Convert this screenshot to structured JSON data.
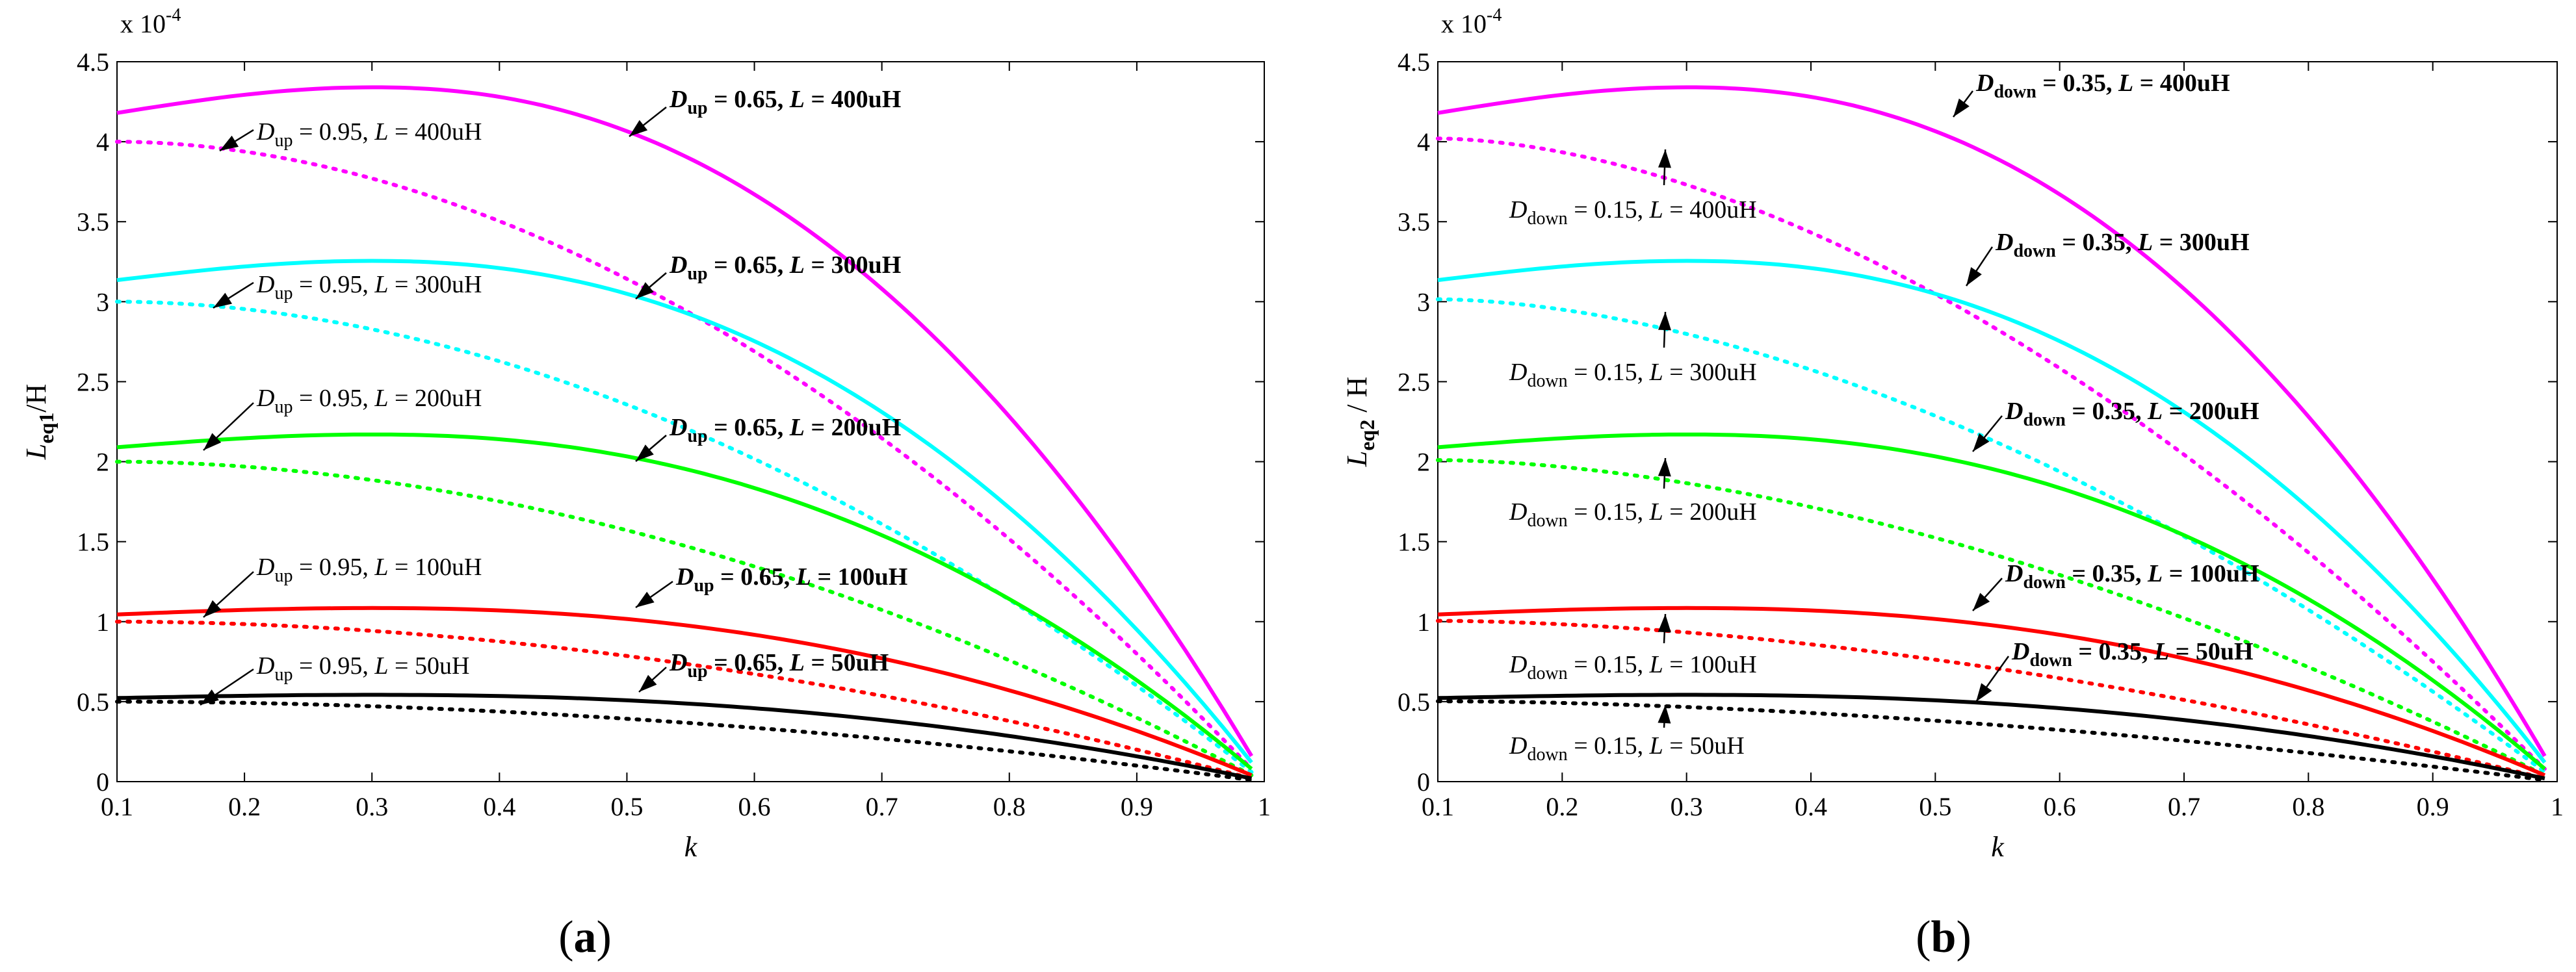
{
  "chart_data": [
    {
      "type": "line",
      "panel_label": "a",
      "xlabel": "k",
      "ylabel_main": "L",
      "ylabel_sub": "eq1",
      "ylabel_unit": "/H",
      "y_exponent_prefix": "x 10",
      "y_exponent_power": "-4",
      "xlim": [
        0.1,
        1
      ],
      "ylim": [
        0,
        4.5
      ],
      "xticks": [
        "0.1",
        "0.2",
        "0.3",
        "0.4",
        "0.5",
        "0.6",
        "0.7",
        "0.8",
        "0.9",
        "1"
      ],
      "yticks": [
        "0",
        "0.5",
        "1",
        "1.5",
        "2",
        "2.5",
        "3",
        "3.5",
        "4",
        "4.5"
      ],
      "series": [
        {
          "name": "D_up = 0.65, L = 400uH",
          "duty": 0.65,
          "L_uH": 400,
          "color": "#ff00ff",
          "style": "solid"
        },
        {
          "name": "D_up = 0.95, L = 400uH",
          "duty": 0.95,
          "L_uH": 400,
          "color": "#ff00ff",
          "style": "dotted"
        },
        {
          "name": "D_up = 0.65, L = 300uH",
          "duty": 0.65,
          "L_uH": 300,
          "color": "#00ffff",
          "style": "solid"
        },
        {
          "name": "D_up = 0.95, L = 300uH",
          "duty": 0.95,
          "L_uH": 300,
          "color": "#00ffff",
          "style": "dotted"
        },
        {
          "name": "D_up = 0.65, L = 200uH",
          "duty": 0.65,
          "L_uH": 200,
          "color": "#00ff00",
          "style": "solid"
        },
        {
          "name": "D_up = 0.95, L = 200uH",
          "duty": 0.95,
          "L_uH": 200,
          "color": "#00ff00",
          "style": "dotted"
        },
        {
          "name": "D_up = 0.65, L = 100uH",
          "duty": 0.65,
          "L_uH": 100,
          "color": "#ff0000",
          "style": "solid"
        },
        {
          "name": "D_up = 0.95, L = 100uH",
          "duty": 0.95,
          "L_uH": 100,
          "color": "#ff0000",
          "style": "dotted"
        },
        {
          "name": "D_up = 0.65, L = 50uH",
          "duty": 0.65,
          "L_uH": 50,
          "color": "#000000",
          "style": "solid"
        },
        {
          "name": "D_up = 0.95, L = 50uH",
          "duty": 0.95,
          "L_uH": 50,
          "color": "#000000",
          "style": "dotted"
        }
      ],
      "annotations": [
        {
          "sym": "D",
          "sub": "up",
          "rest": " = 0.65, ",
          "L": "L",
          "val": " = 400uH",
          "bold": true
        },
        {
          "sym": "D",
          "sub": "up",
          "rest": " = 0.95, ",
          "L": "L",
          "val": " = 400uH",
          "bold": false
        },
        {
          "sym": "D",
          "sub": "up",
          "rest": " = 0.65, ",
          "L": "L",
          "val": " = 300uH",
          "bold": true
        },
        {
          "sym": "D",
          "sub": "up",
          "rest": " = 0.95, ",
          "L": "L",
          "val": " = 300uH",
          "bold": false
        },
        {
          "sym": "D",
          "sub": "up",
          "rest": " = 0.95, ",
          "L": "L",
          "val": " = 200uH",
          "bold": false
        },
        {
          "sym": "D",
          "sub": "up",
          "rest": " = 0.65, ",
          "L": "L",
          "val": " = 200uH",
          "bold": true
        },
        {
          "sym": "D",
          "sub": "up",
          "rest": " = 0.95, ",
          "L": "L",
          "val": " = 100uH",
          "bold": false
        },
        {
          "sym": "D",
          "sub": "up",
          "rest": " = 0.65, ",
          "L": "L",
          "val": " = 100uH",
          "bold": true
        },
        {
          "sym": "D",
          "sub": "up",
          "rest": " = 0.95, ",
          "L": "L",
          "val": " = 50uH",
          "bold": false
        },
        {
          "sym": "D",
          "sub": "up",
          "rest": " = 0.65, ",
          "L": "L",
          "val": " = 50uH",
          "bold": true
        }
      ]
    },
    {
      "type": "line",
      "panel_label": "b",
      "xlabel": "k",
      "ylabel_main": "L",
      "ylabel_sub": "eq2",
      "ylabel_unit": " / H",
      "y_exponent_prefix": "x 10",
      "y_exponent_power": "-4",
      "xlim": [
        0.1,
        1
      ],
      "ylim": [
        0,
        4.5
      ],
      "xticks": [
        "0.1",
        "0.2",
        "0.3",
        "0.4",
        "0.5",
        "0.6",
        "0.7",
        "0.8",
        "0.9",
        "1"
      ],
      "yticks": [
        "0",
        "0.5",
        "1",
        "1.5",
        "2",
        "2.5",
        "3",
        "3.5",
        "4",
        "4.5"
      ],
      "series": [
        {
          "name": "D_down = 0.35, L = 400uH",
          "duty": 0.35,
          "L_uH": 400,
          "color": "#ff00ff",
          "style": "solid"
        },
        {
          "name": "D_down = 0.15, L = 400uH",
          "duty": 0.15,
          "L_uH": 400,
          "color": "#ff00ff",
          "style": "dotted"
        },
        {
          "name": "D_down = 0.35, L = 300uH",
          "duty": 0.35,
          "L_uH": 300,
          "color": "#00ffff",
          "style": "solid"
        },
        {
          "name": "D_down = 0.15, L = 300uH",
          "duty": 0.15,
          "L_uH": 300,
          "color": "#00ffff",
          "style": "dotted"
        },
        {
          "name": "D_down = 0.35, L = 200uH",
          "duty": 0.35,
          "L_uH": 200,
          "color": "#00ff00",
          "style": "solid"
        },
        {
          "name": "D_down = 0.15, L = 200uH",
          "duty": 0.15,
          "L_uH": 200,
          "color": "#00ff00",
          "style": "dotted"
        },
        {
          "name": "D_down = 0.35, L = 100uH",
          "duty": 0.35,
          "L_uH": 100,
          "color": "#ff0000",
          "style": "solid"
        },
        {
          "name": "D_down = 0.15, L = 100uH",
          "duty": 0.15,
          "L_uH": 100,
          "color": "#ff0000",
          "style": "dotted"
        },
        {
          "name": "D_down = 0.35, L = 50uH",
          "duty": 0.35,
          "L_uH": 50,
          "color": "#000000",
          "style": "solid"
        },
        {
          "name": "D_down = 0.15, L = 50uH",
          "duty": 0.15,
          "L_uH": 50,
          "color": "#000000",
          "style": "dotted"
        }
      ],
      "annotations": [
        {
          "sym": "D",
          "sub": "down",
          "rest": " = 0.35, ",
          "L": "L",
          "val": " = 400uH",
          "bold": true
        },
        {
          "sym": "D",
          "sub": "down",
          "rest": " = 0.15, ",
          "L": "L",
          "val": " = 400uH",
          "bold": false
        },
        {
          "sym": "D",
          "sub": "down",
          "rest": " = 0.35, ",
          "L": "L",
          "val": " = 300uH",
          "bold": true
        },
        {
          "sym": "D",
          "sub": "down",
          "rest": " = 0.15, ",
          "L": "L",
          "val": " = 300uH",
          "bold": false
        },
        {
          "sym": "D",
          "sub": "down",
          "rest": " = 0.35, ",
          "L": "L",
          "val": " = 200uH",
          "bold": true
        },
        {
          "sym": "D",
          "sub": "down",
          "rest": " = 0.15, ",
          "L": "L",
          "val": " = 200uH",
          "bold": false
        },
        {
          "sym": "D",
          "sub": "down",
          "rest": " = 0.35, ",
          "L": "L",
          "val": " = 100uH",
          "bold": true
        },
        {
          "sym": "D",
          "sub": "down",
          "rest": " = 0.15, ",
          "L": "L",
          "val": " = 100uH",
          "bold": false
        },
        {
          "sym": "D",
          "sub": "down",
          "rest": " = 0.35, ",
          "L": "L",
          "val": " = 50uH",
          "bold": true
        },
        {
          "sym": "D",
          "sub": "down",
          "rest": " = 0.15, ",
          "L": "L",
          "val": " = 50uH",
          "bold": false
        }
      ]
    }
  ]
}
